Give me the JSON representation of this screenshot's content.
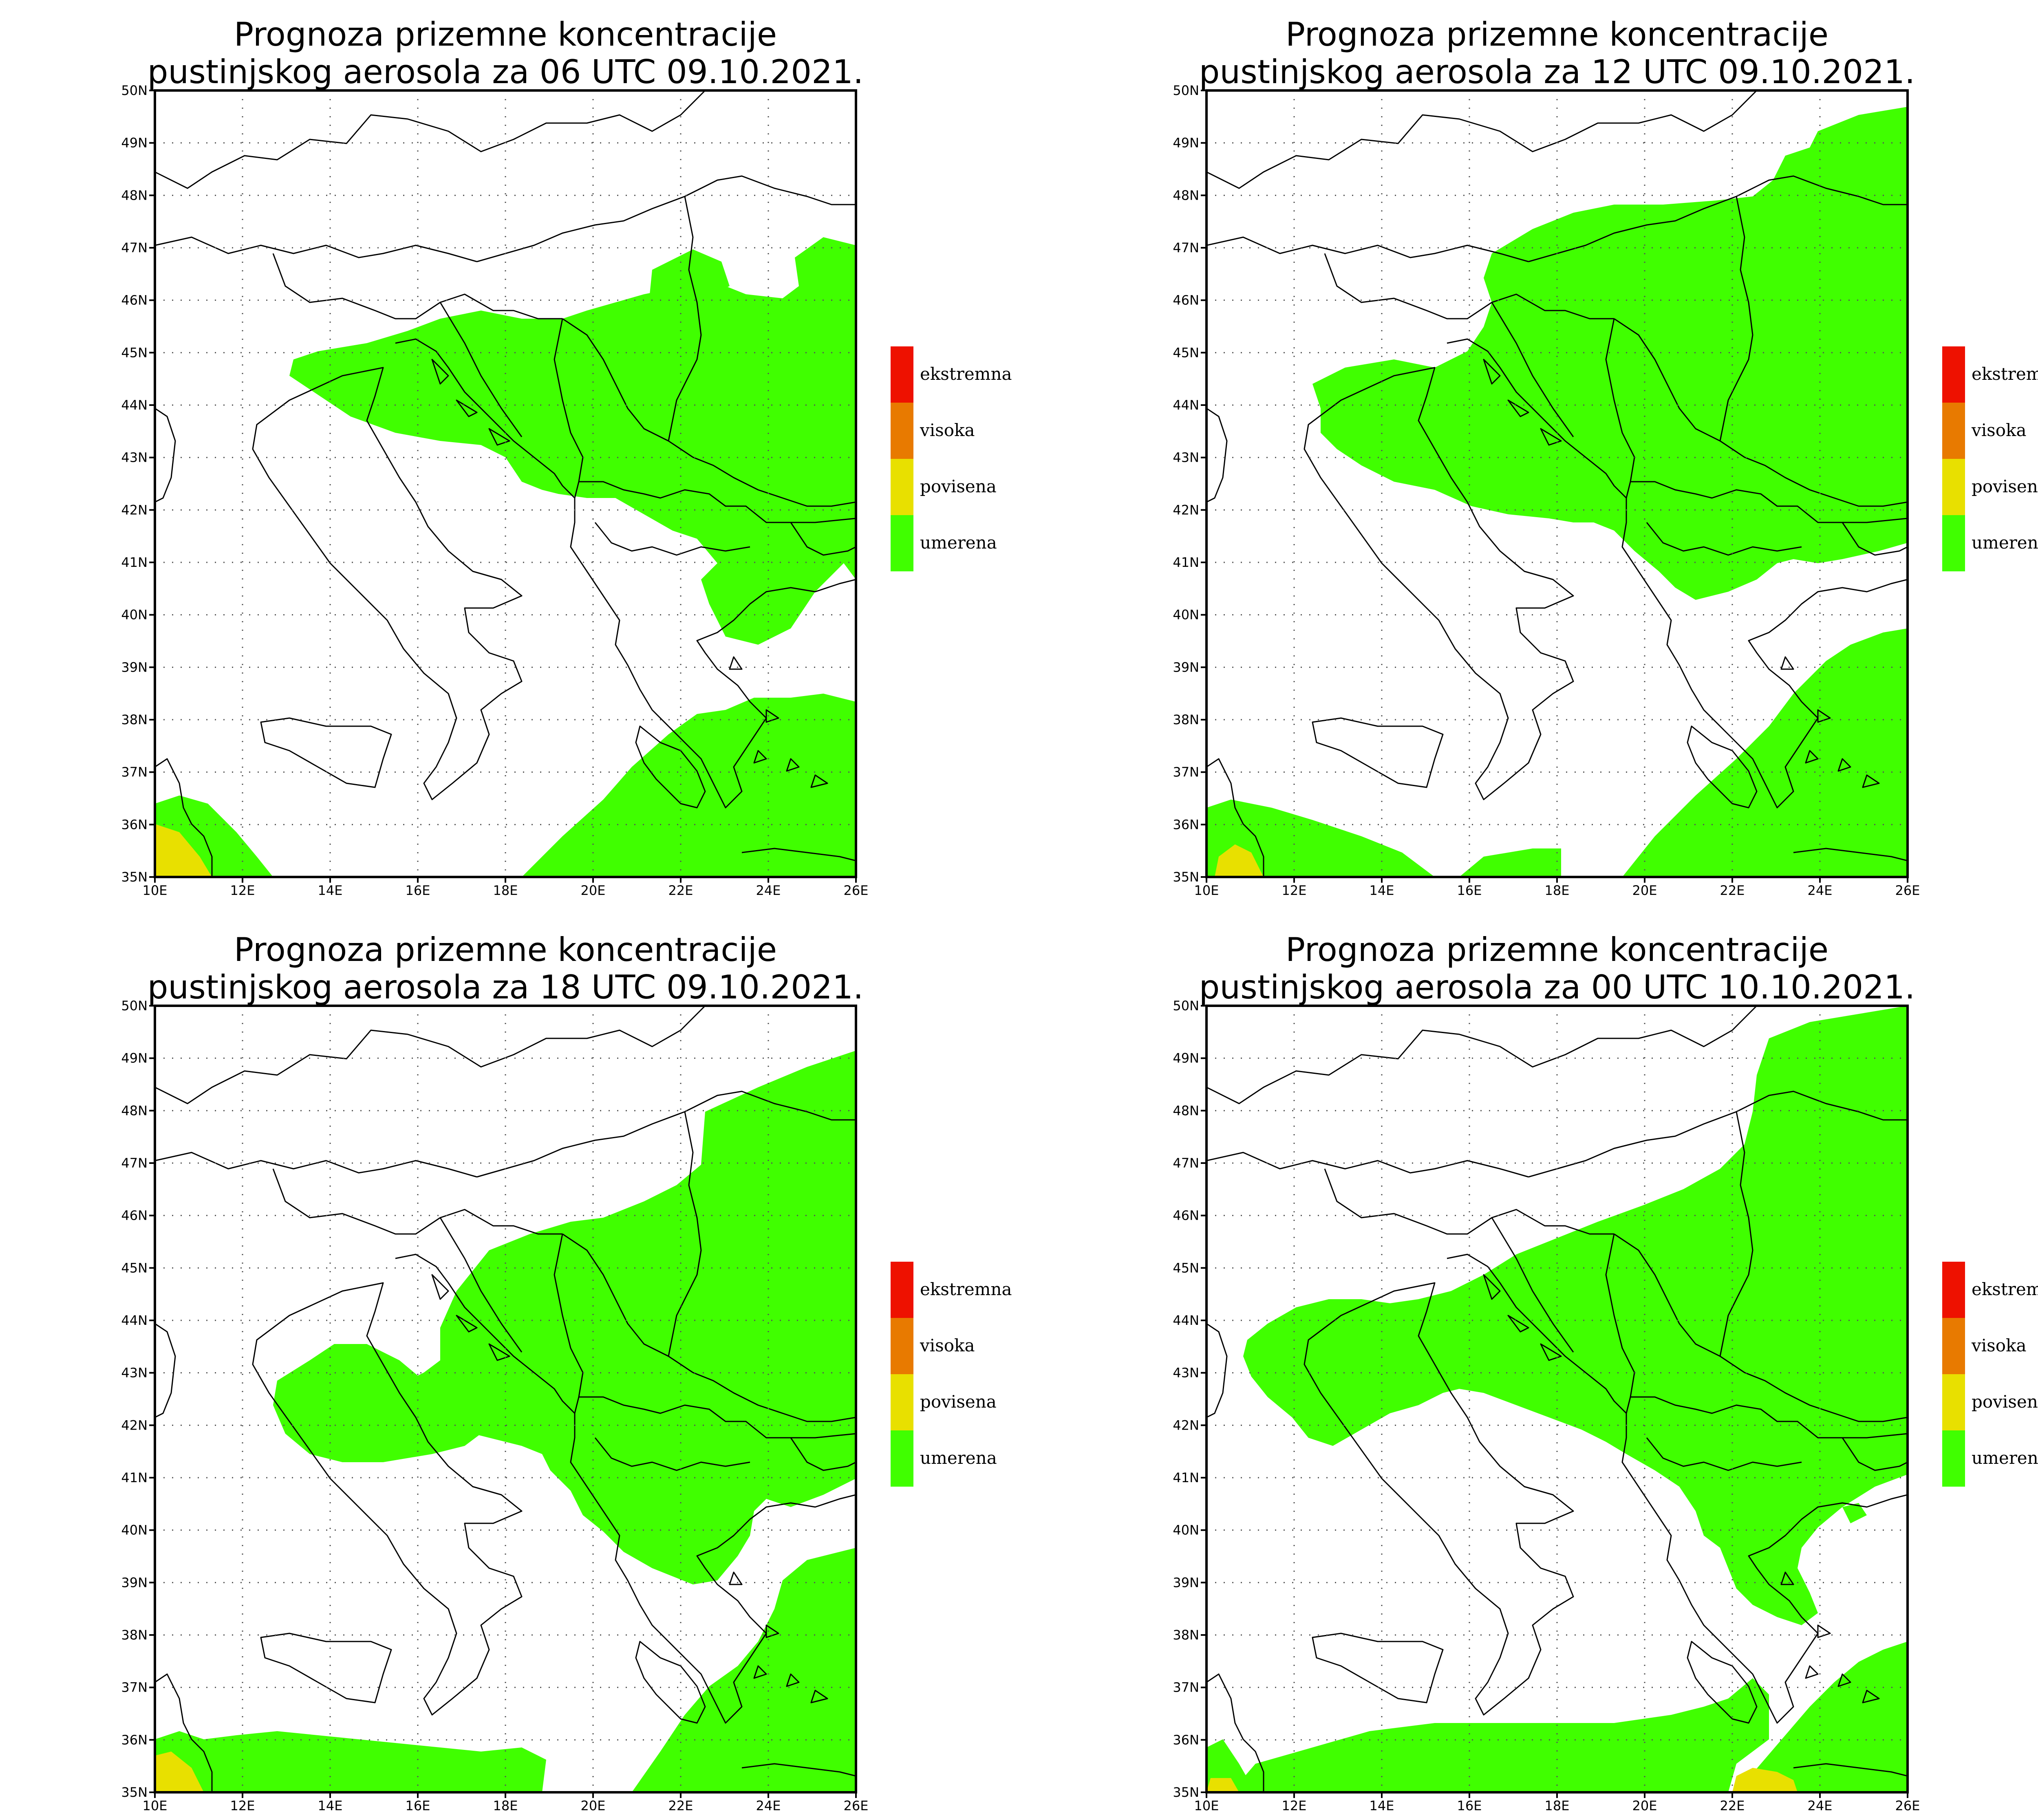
{
  "colors": {
    "umerena": "#40ff00",
    "povisena": "#e8e000",
    "visoka": "#e87a00",
    "ekstremna": "#ee1100"
  },
  "axes": {
    "lat_labels": [
      "35N",
      "36N",
      "37N",
      "38N",
      "39N",
      "40N",
      "41N",
      "42N",
      "43N",
      "44N",
      "45N",
      "46N",
      "47N",
      "48N",
      "49N",
      "50N"
    ],
    "lon_labels": [
      "10E",
      "12E",
      "14E",
      "16E",
      "18E",
      "20E",
      "22E",
      "24E",
      "26E"
    ]
  },
  "legend": [
    {
      "label": "ekstremna",
      "color": "#ee1100"
    },
    {
      "label": "visoka",
      "color": "#e87a00"
    },
    {
      "label": "povisena",
      "color": "#e8e000"
    },
    {
      "label": "umerena",
      "color": "#40ff00"
    }
  ],
  "panels": [
    {
      "title_line1": "Prognoza prizemne koncentracije",
      "title_line2": "pustinjskog aerosola za 06 UTC 09.10.2021."
    },
    {
      "title_line1": "Prognoza prizemne koncentracije",
      "title_line2": "pustinjskog aerosola za 12 UTC 09.10.2021."
    },
    {
      "title_line1": "Prognoza prizemne koncentracije",
      "title_line2": "pustinjskog aerosola za 18 UTC 09.10.2021."
    },
    {
      "title_line1": "Prognoza prizemne koncentracije",
      "title_line2": "pustinjskog aerosola za 00 UTC 10.10.2021."
    }
  ]
}
